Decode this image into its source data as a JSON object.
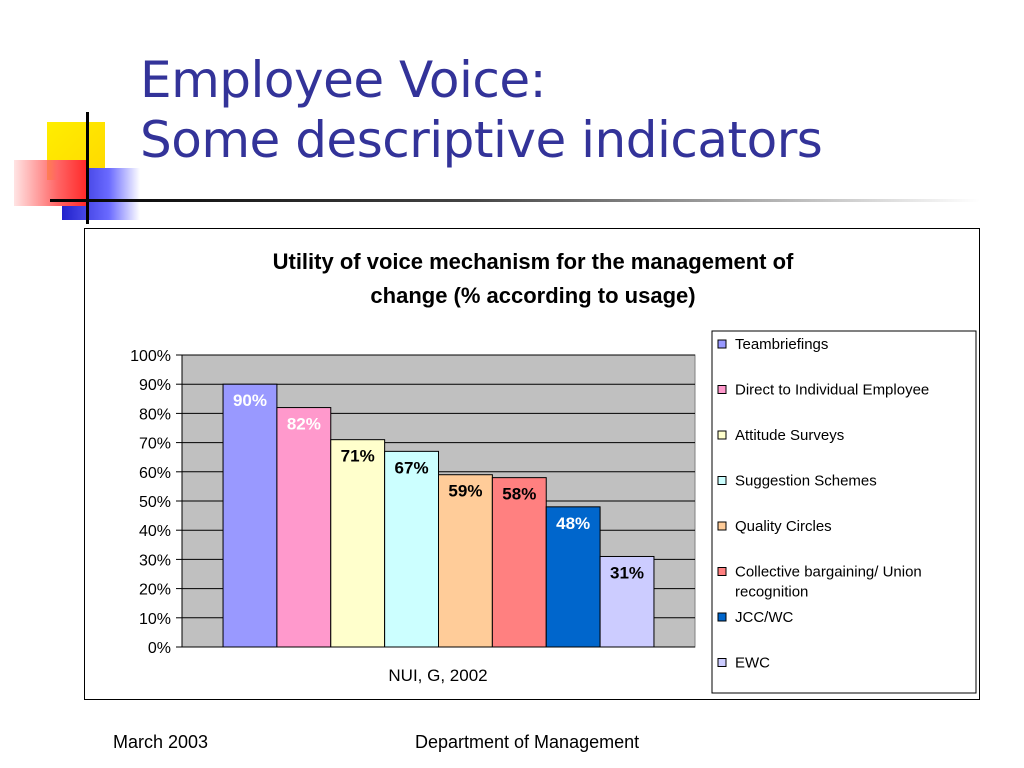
{
  "slide": {
    "title_line1": "Employee Voice:",
    "title_line2": "Some descriptive indicators",
    "footer_left": "March 2003",
    "footer_center": "Department of Management"
  },
  "colors": {
    "title": "#333399",
    "plot_background": "#c0c0c0"
  },
  "chart_data": {
    "type": "bar",
    "title_lines": [
      "Utility of voice mechanism for the management of",
      "change (% according to usage)"
    ],
    "xlabel": "NUI, G, 2002",
    "ylabel": "",
    "ylim": [
      0,
      100
    ],
    "yticks": [
      "0%",
      "10%",
      "20%",
      "30%",
      "40%",
      "50%",
      "60%",
      "70%",
      "80%",
      "90%",
      "100%"
    ],
    "grid": true,
    "legend_position": "right",
    "series": [
      {
        "name": "Teambriefings",
        "value": 90,
        "label": "90%",
        "color": "#9999ff",
        "label_color": "#ffffff"
      },
      {
        "name": "Direct to Individual Employee",
        "value": 82,
        "label": "82%",
        "color": "#ff99cc",
        "label_color": "#ffffff"
      },
      {
        "name": "Attitude Surveys",
        "value": 71,
        "label": "71%",
        "color": "#ffffcc",
        "label_color": "#000000"
      },
      {
        "name": "Suggestion Schemes",
        "value": 67,
        "label": "67%",
        "color": "#ccffff",
        "label_color": "#000000"
      },
      {
        "name": "Quality Circles",
        "value": 59,
        "label": "59%",
        "color": "#ffcc99",
        "label_color": "#000000"
      },
      {
        "name": "Collective bargaining/ Union recognition",
        "legend_lines": [
          "Collective bargaining/ Union",
          "recognition"
        ],
        "value": 58,
        "label": "58%",
        "color": "#ff8080",
        "label_color": "#000000"
      },
      {
        "name": "JCC/WC",
        "value": 48,
        "label": "48%",
        "color": "#0066cc",
        "label_color": "#ffffff"
      },
      {
        "name": "EWC",
        "value": 31,
        "label": "31%",
        "color": "#ccccff",
        "label_color": "#000000"
      }
    ]
  }
}
